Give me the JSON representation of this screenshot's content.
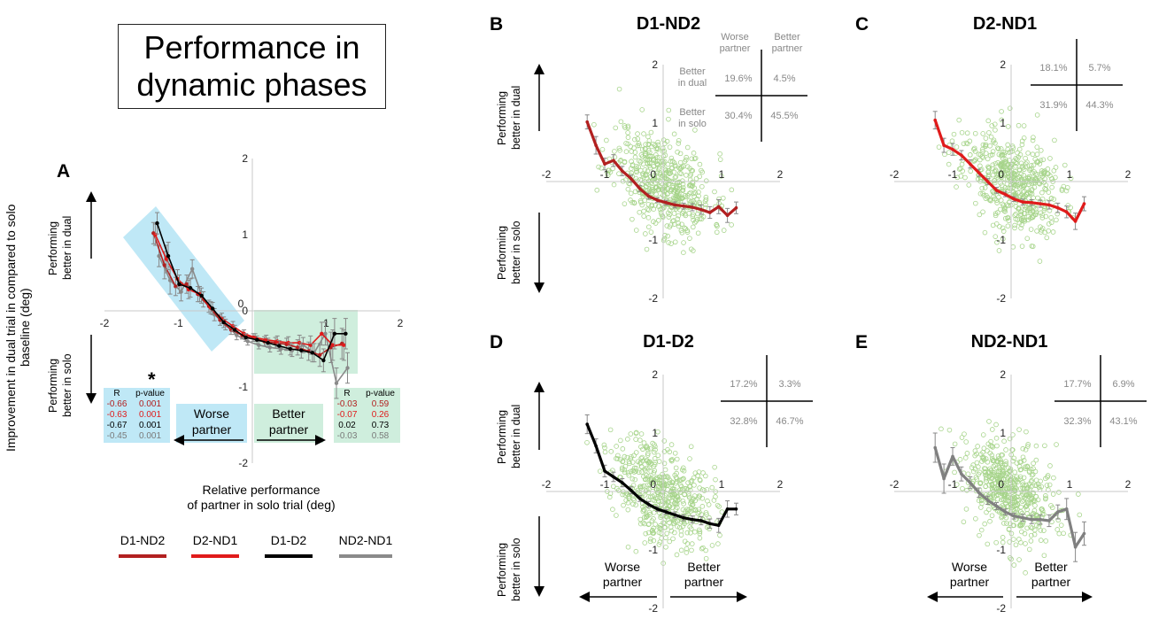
{
  "title": "Performance in dynamic phases",
  "title_lines": [
    "Performance in",
    "dynamic phases"
  ],
  "panel_labels": {
    "A": "A",
    "B": "B",
    "C": "C",
    "D": "D",
    "E": "E"
  },
  "y_axis_label": "Improvement in dual trial in compared to solo baseline (deg)",
  "x_axis_label": {
    "line1": "Relative performance",
    "line2": "of partner in solo trial (deg)"
  },
  "perf_dual": {
    "line1": "Performing",
    "line2": "better in dual"
  },
  "perf_solo": {
    "line1": "Performing",
    "line2": "better in solo"
  },
  "worse_partner": "Worse partner",
  "better_partner": "Better partner",
  "worse_partner_lines": [
    "Worse",
    "partner"
  ],
  "better_partner_lines": [
    "Better",
    "partner"
  ],
  "star": "*",
  "colors": {
    "D1-ND2": "#b22020",
    "D2-ND1": "#e01b1b",
    "D1-D2": "#000000",
    "ND2-ND1": "#8a8a8a",
    "scatter": "#a6d48a",
    "blue_box": "#bfe8f6",
    "green_box": "#cfeedd"
  },
  "legend": [
    {
      "name": "D1-ND2",
      "color": "#b22020"
    },
    {
      "name": "D2-ND1",
      "color": "#e01b1b"
    },
    {
      "name": "D1-D2",
      "color": "#000000"
    },
    {
      "name": "ND2-ND1",
      "color": "#8a8a8a"
    }
  ],
  "stats": {
    "worse": {
      "headers": [
        "R",
        "p-value"
      ],
      "rows": [
        [
          "-0.66",
          "0.001"
        ],
        [
          "-0.63",
          "0.001"
        ],
        [
          "-0.67",
          "0.001"
        ],
        [
          "-0.45",
          "0.001"
        ]
      ]
    },
    "better": {
      "headers": [
        "R",
        "p-value"
      ],
      "rows": [
        [
          "-0.03",
          "0.59"
        ],
        [
          "-0.07",
          "0.26"
        ],
        [
          "0.02",
          "0.73"
        ],
        [
          "-0.03",
          "0.58"
        ]
      ]
    }
  },
  "quadrant_headers": {
    "worse": [
      "Worse",
      "partner"
    ],
    "better": [
      "Better",
      "partner"
    ],
    "better_in_dual": [
      "Better",
      "in dual"
    ],
    "better_in_solo": [
      "Better",
      "in solo"
    ]
  },
  "chart_data": [
    {
      "panel": "A",
      "type": "line",
      "xlim": [
        -2,
        2
      ],
      "ylim": [
        -2,
        2
      ],
      "xticks": [
        -2,
        -1,
        0,
        1,
        2
      ],
      "yticks": [
        -2,
        -1,
        0,
        1,
        2
      ],
      "x": [
        -1.3,
        -1.15,
        -1.0,
        -0.85,
        -0.7,
        -0.55,
        -0.4,
        -0.25,
        -0.1,
        0.05,
        0.2,
        0.35,
        0.5,
        0.65,
        0.8,
        0.95,
        1.1,
        1.25
      ],
      "series": [
        {
          "name": "D1-ND2",
          "values": [
            1.02,
            0.6,
            0.32,
            0.35,
            0.22,
            0.06,
            -0.12,
            -0.25,
            -0.32,
            -0.35,
            -0.4,
            -0.42,
            -0.44,
            -0.48,
            -0.53,
            -0.58,
            -0.48,
            -0.43
          ]
        },
        {
          "name": "D2-ND1",
          "values": [
            1.0,
            0.68,
            0.42,
            0.28,
            0.22,
            0.04,
            -0.1,
            -0.2,
            -0.3,
            -0.35,
            -0.38,
            -0.4,
            -0.42,
            -0.42,
            -0.45,
            -0.3,
            -0.45,
            -0.45
          ]
        },
        {
          "name": "D1-D2",
          "values": [
            1.15,
            0.72,
            0.35,
            0.3,
            0.2,
            0.03,
            -0.15,
            -0.25,
            -0.35,
            -0.38,
            -0.42,
            -0.46,
            -0.5,
            -0.52,
            -0.55,
            -0.65,
            -0.3,
            -0.3
          ]
        },
        {
          "name": "ND2-ND1",
          "values": [
            0.72,
            0.4,
            0.25,
            0.55,
            0.15,
            -0.05,
            -0.18,
            -0.32,
            -0.4,
            -0.45,
            -0.48,
            -0.5,
            -0.52,
            -0.45,
            -0.55,
            -0.3,
            -0.95,
            -0.75
          ]
        }
      ],
      "errors": [
        0.14,
        0.18,
        0.12,
        0.12,
        0.1,
        0.08,
        0.07,
        0.06,
        0.05,
        0.05,
        0.06,
        0.07,
        0.08,
        0.1,
        0.12,
        0.15,
        0.2,
        0.2
      ]
    },
    {
      "panel": "B",
      "title": "D1-ND2",
      "type": "scatter+line",
      "color": "#b22020",
      "xlim": [
        -2,
        2
      ],
      "ylim": [
        -2,
        2
      ],
      "quadrants": {
        "worse_dual": "19.6%",
        "better_dual": "4.5%",
        "worse_solo": "30.4%",
        "better_solo": "45.5%"
      },
      "x": [
        -1.3,
        -1.15,
        -1.0,
        -0.85,
        -0.7,
        -0.55,
        -0.4,
        -0.25,
        -0.1,
        0.05,
        0.2,
        0.35,
        0.5,
        0.65,
        0.8,
        0.95,
        1.1,
        1.25
      ],
      "values": [
        1.02,
        0.62,
        0.3,
        0.36,
        0.18,
        0.05,
        -0.12,
        -0.25,
        -0.32,
        -0.36,
        -0.4,
        -0.42,
        -0.44,
        -0.48,
        -0.53,
        -0.43,
        -0.58,
        -0.45
      ],
      "errors": [
        0.12,
        0.15,
        0.1,
        0.1,
        0.08,
        0.06,
        0.05,
        0.05,
        0.04,
        0.04,
        0.05,
        0.05,
        0.06,
        0.08,
        0.1,
        0.12,
        0.12,
        0.1
      ]
    },
    {
      "panel": "C",
      "title": "D2-ND1",
      "type": "scatter+line",
      "color": "#e01b1b",
      "xlim": [
        -2,
        2
      ],
      "ylim": [
        -2,
        2
      ],
      "quadrants": {
        "worse_dual": "18.1%",
        "better_dual": "5.7%",
        "worse_solo": "31.9%",
        "better_solo": "44.3%"
      },
      "x": [
        -1.3,
        -1.15,
        -1.0,
        -0.85,
        -0.7,
        -0.55,
        -0.4,
        -0.25,
        -0.1,
        0.05,
        0.2,
        0.35,
        0.5,
        0.65,
        0.8,
        0.95,
        1.1,
        1.25
      ],
      "values": [
        1.05,
        0.62,
        0.55,
        0.45,
        0.3,
        0.15,
        0.0,
        -0.15,
        -0.22,
        -0.3,
        -0.35,
        -0.36,
        -0.38,
        -0.4,
        -0.45,
        -0.52,
        -0.68,
        -0.38
      ],
      "errors": [
        0.15,
        0.12,
        0.1,
        0.08,
        0.07,
        0.06,
        0.05,
        0.05,
        0.04,
        0.04,
        0.05,
        0.05,
        0.06,
        0.07,
        0.08,
        0.1,
        0.14,
        0.12
      ]
    },
    {
      "panel": "D",
      "title": "D1-D2",
      "type": "scatter+line",
      "color": "#000000",
      "xlim": [
        -2,
        2
      ],
      "ylim": [
        -2,
        2
      ],
      "quadrants": {
        "worse_dual": "17.2%",
        "better_dual": "3.3%",
        "worse_solo": "32.8%",
        "better_solo": "46.7%"
      },
      "x": [
        -1.3,
        -1.15,
        -1.0,
        -0.85,
        -0.7,
        -0.55,
        -0.4,
        -0.25,
        -0.1,
        0.05,
        0.2,
        0.35,
        0.5,
        0.65,
        0.8,
        0.95,
        1.1,
        1.25
      ],
      "values": [
        1.15,
        0.78,
        0.35,
        0.25,
        0.15,
        0.02,
        -0.12,
        -0.22,
        -0.3,
        -0.35,
        -0.4,
        -0.45,
        -0.48,
        -0.5,
        -0.55,
        -0.58,
        -0.3,
        -0.3
      ],
      "errors": [
        0.16,
        0.12,
        0.1,
        0.08,
        0.07,
        0.06,
        0.05,
        0.05,
        0.04,
        0.04,
        0.05,
        0.05,
        0.06,
        0.07,
        0.08,
        0.12,
        0.14,
        0.1
      ]
    },
    {
      "panel": "E",
      "title": "ND2-ND1",
      "type": "scatter+line",
      "color": "#808080",
      "xlim": [
        -2,
        2
      ],
      "ylim": [
        -2,
        2
      ],
      "quadrants": {
        "worse_dual": "17.7%",
        "better_dual": "6.9%",
        "worse_solo": "32.3%",
        "better_solo": "43.1%"
      },
      "x": [
        -1.3,
        -1.15,
        -1.0,
        -0.85,
        -0.7,
        -0.55,
        -0.4,
        -0.25,
        -0.1,
        0.05,
        0.2,
        0.35,
        0.5,
        0.65,
        0.8,
        0.95,
        1.1,
        1.25
      ],
      "values": [
        0.75,
        0.22,
        0.6,
        0.3,
        0.15,
        -0.02,
        -0.15,
        -0.25,
        -0.35,
        -0.42,
        -0.45,
        -0.48,
        -0.48,
        -0.5,
        -0.35,
        -0.3,
        -0.95,
        -0.72
      ],
      "errors": [
        0.25,
        0.25,
        0.15,
        0.12,
        0.1,
        0.08,
        0.07,
        0.06,
        0.05,
        0.05,
        0.06,
        0.07,
        0.08,
        0.1,
        0.12,
        0.18,
        0.25,
        0.2
      ]
    }
  ]
}
